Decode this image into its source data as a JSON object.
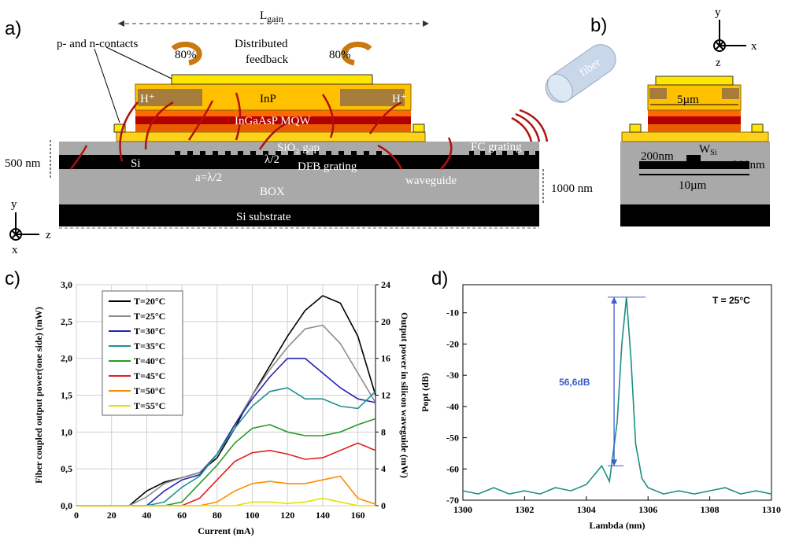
{
  "panel_labels": {
    "a": "a)",
    "b": "b)",
    "c": "c)",
    "d": "d)"
  },
  "diagram_a": {
    "gain_length": {
      "main": "L",
      "sub": "gain"
    },
    "contacts": "p- and n-contacts",
    "distributed_feedback": [
      "Distributed",
      "feedback"
    ],
    "reflectivity_left": "80%",
    "reflectivity_right": "80%",
    "inp": "InP",
    "h_left": "H⁺",
    "h_right": "H⁺",
    "mqw": "InGaAsP MQW",
    "gap": "SiO₂ gap",
    "fc_grating": "FC grating",
    "fiber": "fiber",
    "thickness_si": "500 nm",
    "si": "Si",
    "period": "a=λ/2",
    "half_lambda": "λ/2",
    "dfb_grating": "DFB grating",
    "waveguide": "waveguide",
    "box": "BOX",
    "thickness_box": "1000 nm",
    "substrate": "Si substrate",
    "axes": {
      "y": "y",
      "z": "z",
      "x": "x"
    }
  },
  "diagram_b": {
    "axes": {
      "y": "y",
      "x": "x",
      "z": "z"
    },
    "width_inp": "5µm",
    "rib_height": "200nm",
    "rib_width": {
      "main": "W",
      "sub": "Si"
    },
    "slab_height": "300nm",
    "width_wg": "10µm"
  },
  "chart_data": [
    {
      "type": "line",
      "x_label": "Current (mA)",
      "y_label": "Fiber coupled output power(one side) (mW)",
      "y2_label": "Output power in silicon waveguide (mW)",
      "x": [
        0,
        20,
        30,
        40,
        50,
        60,
        70,
        80,
        90,
        100,
        110,
        120,
        130,
        140,
        150,
        160,
        170
      ],
      "series": [
        {
          "name": "T=20°C",
          "color": "#000000",
          "values": [
            0,
            0,
            0,
            0.2,
            0.32,
            0.38,
            0.45,
            0.65,
            1.05,
            1.5,
            1.9,
            2.3,
            2.65,
            2.85,
            2.75,
            2.3,
            1.5
          ]
        },
        {
          "name": "T=25°C",
          "color": "#8c8c8c",
          "values": [
            0,
            0,
            0,
            0.12,
            0.3,
            0.38,
            0.45,
            0.7,
            1.1,
            1.5,
            1.85,
            2.15,
            2.4,
            2.45,
            2.2,
            1.8,
            1.4
          ]
        },
        {
          "name": "T=30°C",
          "color": "#2424b4",
          "values": [
            0,
            0,
            0,
            0,
            0.2,
            0.35,
            0.42,
            0.7,
            1.1,
            1.45,
            1.75,
            2.0,
            2.0,
            1.8,
            1.6,
            1.45,
            1.4
          ]
        },
        {
          "name": "T=35°C",
          "color": "#1f9090",
          "values": [
            0,
            0,
            0,
            0,
            0.05,
            0.25,
            0.4,
            0.7,
            1.05,
            1.35,
            1.55,
            1.6,
            1.45,
            1.45,
            1.35,
            1.32,
            1.55
          ]
        },
        {
          "name": "T=40°C",
          "color": "#2a9a2a",
          "values": [
            0,
            0,
            0,
            0,
            0,
            0.05,
            0.3,
            0.55,
            0.85,
            1.05,
            1.1,
            1.0,
            0.95,
            0.95,
            1.0,
            1.1,
            1.18
          ]
        },
        {
          "name": "T=45°C",
          "color": "#e02020",
          "values": [
            0,
            0,
            0,
            0,
            0,
            0,
            0.1,
            0.35,
            0.6,
            0.72,
            0.75,
            0.7,
            0.63,
            0.65,
            0.75,
            0.85,
            0.75
          ]
        },
        {
          "name": "T=50°C",
          "color": "#ff8c00",
          "values": [
            0,
            0,
            0,
            0,
            0,
            0,
            0,
            0.05,
            0.2,
            0.3,
            0.33,
            0.3,
            0.3,
            0.35,
            0.4,
            0.1,
            0.02
          ]
        },
        {
          "name": "T=55°C",
          "color": "#e8e000",
          "values": [
            0,
            0,
            0,
            0,
            0,
            0,
            0,
            0,
            0,
            0.05,
            0.05,
            0.03,
            0.05,
            0.1,
            0.05,
            0,
            0
          ]
        }
      ],
      "xlim": [
        0,
        170
      ],
      "xticks": [
        0,
        20,
        40,
        60,
        80,
        100,
        120,
        140,
        160
      ],
      "ylim": [
        0,
        3
      ],
      "yticks": [
        {
          "value": 0,
          "label": "0,0"
        },
        {
          "value": 0.5,
          "label": "0,5"
        },
        {
          "value": 1,
          "label": "1,0"
        },
        {
          "value": 1.5,
          "label": "1,5"
        },
        {
          "value": 2,
          "label": "2,0"
        },
        {
          "value": 2.5,
          "label": "2,5"
        },
        {
          "value": 3,
          "label": "3,0"
        }
      ],
      "y2lim": [
        0,
        24
      ],
      "y2ticks": [
        0,
        4,
        8,
        12,
        16,
        20,
        24
      ],
      "grid": true,
      "legend": "upper left"
    },
    {
      "type": "line",
      "title": "T = 25°C",
      "x_label": "Lambda (nm)",
      "y_label": "Popt (dB)",
      "annotation": "56,6dB",
      "x": [
        1300,
        1300.5,
        1301,
        1301.5,
        1302,
        1302.5,
        1303,
        1303.5,
        1304,
        1304.25,
        1304.5,
        1304.75,
        1305,
        1305.15,
        1305.3,
        1305.45,
        1305.6,
        1305.8,
        1306,
        1306.5,
        1307,
        1307.5,
        1308,
        1308.5,
        1309,
        1309.5,
        1310
      ],
      "series": [
        {
          "color": "#1a9080",
          "values": [
            -67,
            -68,
            -66,
            -68,
            -67,
            -68,
            -66,
            -67,
            -65,
            -62,
            -59,
            -64,
            -45,
            -20,
            -5,
            -25,
            -52,
            -63,
            -66,
            -68,
            -67,
            -68,
            -67,
            -66,
            -68,
            -67,
            -68
          ]
        }
      ],
      "xlim": [
        1300,
        1310
      ],
      "xticks": [
        1300,
        1302,
        1304,
        1306,
        1308,
        1310
      ],
      "ylim": [
        -70,
        -1
      ],
      "yticks": [
        -10,
        -20,
        -30,
        -40,
        -50,
        -60,
        -70
      ],
      "grid": false
    }
  ]
}
